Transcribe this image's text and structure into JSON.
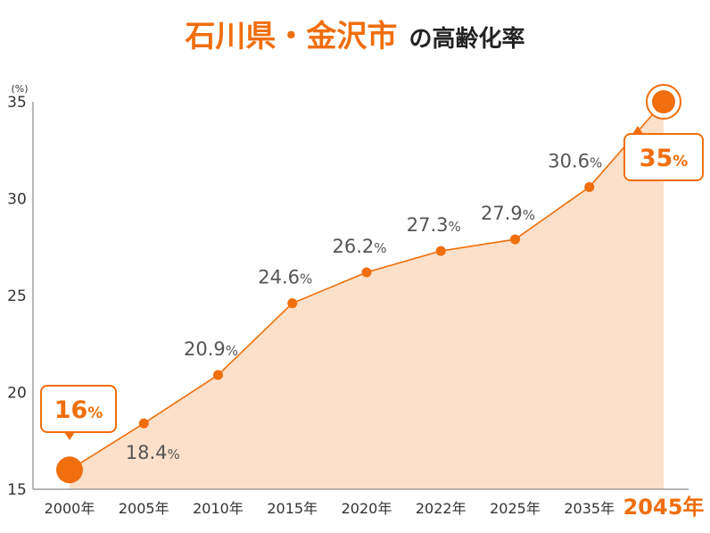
{
  "title": {
    "main": "石川県・金沢市",
    "sub": "の高齢化率"
  },
  "colors": {
    "accent": "#f06e0c",
    "area": "#fde0c9",
    "axis": "#9e9e9e",
    "text": "#333333",
    "label": "#555555"
  },
  "chart_data": {
    "type": "area",
    "categories": [
      "2000年",
      "2005年",
      "2010年",
      "2015年",
      "2020年",
      "2022年",
      "2025年",
      "2035年",
      "2045年"
    ],
    "values": [
      16,
      18.4,
      20.9,
      24.6,
      26.2,
      27.3,
      27.9,
      30.6,
      35
    ],
    "value_labels": [
      "16",
      "18.4",
      "20.9",
      "24.6",
      "26.2",
      "27.3",
      "27.9",
      "30.6",
      "35"
    ],
    "value_unit": "%",
    "y_unit_label": "(%)",
    "ylim": [
      15,
      35
    ],
    "yticks": [
      15,
      20,
      25,
      30,
      35
    ],
    "highlighted_category": "2045年",
    "callouts": [
      0,
      8
    ],
    "grid": false,
    "legend": "none"
  }
}
